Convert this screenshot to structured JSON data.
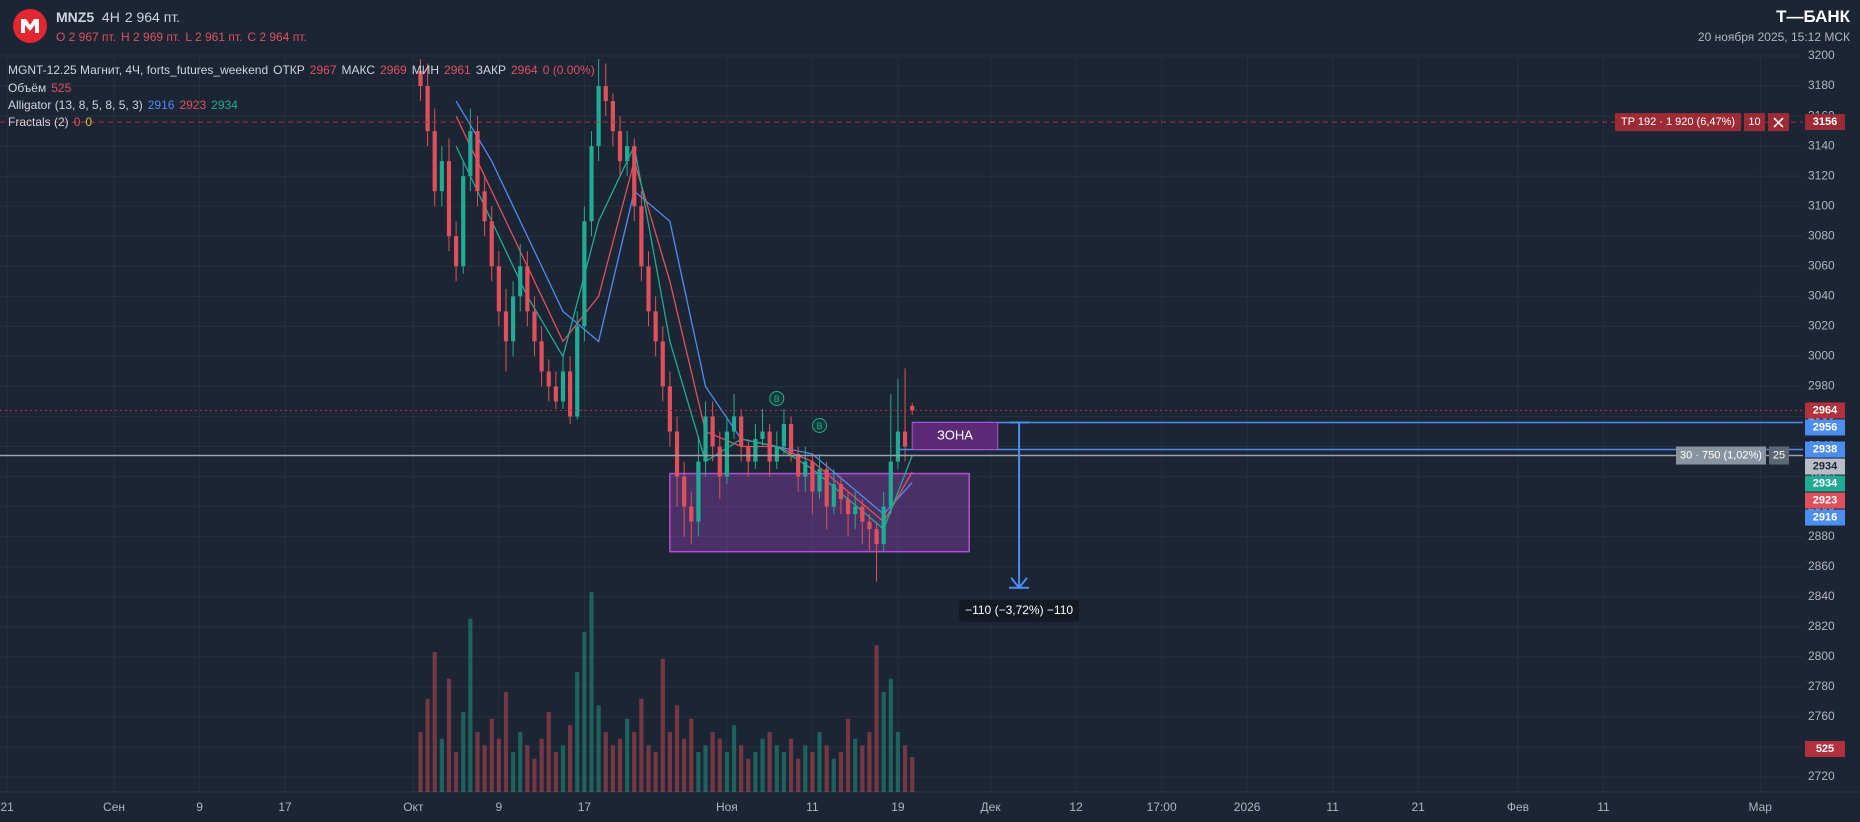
{
  "header": {
    "symbol": "MNZ5",
    "interval": "4H",
    "price": "2 964 пт.",
    "ohlc": [
      "O 2 967 пт.",
      "H 2 969 пт.",
      "L 2 961 пт.",
      "C 2 964 пт."
    ],
    "brand": "Т—БАНК",
    "datetime": "20 ноября 2025, 15:12 МСК"
  },
  "legend": {
    "instrument": "MGNT-12.25 Магнит, 4Ч, forts_futures_weekend",
    "open": "ОТКР",
    "high": "МАКС",
    "low": "МИН",
    "close": "ЗАКР",
    "change": "0 (0.00%)",
    "volume": "Объём",
    "alligator": "Alligator (13, 8, 5, 8, 5, 3)",
    "fractals": "Fractals (2)",
    "fractal_values": [
      "0",
      "0"
    ]
  },
  "chart_data": {
    "type": "candlestick",
    "up_color": "#22ab94",
    "down_color": "#e0505c",
    "open": [
      3190,
      3180,
      3150,
      3110,
      3130,
      3080,
      3060,
      3120,
      3150,
      3110,
      3090,
      3060,
      3030,
      3010,
      3040,
      3060,
      3030,
      3010,
      2990,
      2980,
      2970,
      2990,
      2960,
      3020,
      3090,
      3140,
      3180,
      3170,
      3150,
      3130,
      3140,
      3100,
      3060,
      3030,
      3010,
      2980,
      2950,
      2920,
      2900,
      2890,
      2930,
      2960,
      2940,
      2920,
      2950,
      2960,
      2940,
      2930,
      2945,
      2950,
      2930,
      2940,
      2955,
      2935,
      2920,
      2930,
      2910,
      2925,
      2900,
      2915,
      2905,
      2895,
      2900,
      2890,
      2885,
      2875,
      2900,
      2930,
      2950,
      2967
    ],
    "high": [
      3198,
      3195,
      3165,
      3140,
      3145,
      3090,
      3130,
      3165,
      3160,
      3120,
      3100,
      3070,
      3045,
      3050,
      3075,
      3070,
      3040,
      3020,
      2998,
      2990,
      3000,
      3000,
      3030,
      3100,
      3150,
      3198,
      3195,
      3175,
      3160,
      3150,
      3145,
      3110,
      3070,
      3040,
      3020,
      2990,
      2960,
      2930,
      2910,
      2945,
      2970,
      2970,
      2950,
      2960,
      2975,
      2965,
      2945,
      2955,
      2965,
      2955,
      2950,
      2965,
      2960,
      2940,
      2940,
      2935,
      2935,
      2930,
      2925,
      2920,
      2910,
      2910,
      2905,
      2895,
      2890,
      2910,
      2975,
      2985,
      2992,
      2969
    ],
    "low": [
      3170,
      3140,
      3100,
      3100,
      3070,
      3050,
      3055,
      3110,
      3100,
      3080,
      3050,
      3020,
      2990,
      3000,
      3030,
      3020,
      3000,
      2980,
      2970,
      2965,
      2965,
      2955,
      2958,
      3010,
      3080,
      3130,
      3160,
      3140,
      3120,
      3120,
      3090,
      3050,
      3020,
      3000,
      2970,
      2940,
      2900,
      2880,
      2875,
      2880,
      2920,
      2930,
      2905,
      2915,
      2945,
      2930,
      2920,
      2925,
      2940,
      2920,
      2925,
      2935,
      2930,
      2910,
      2910,
      2895,
      2905,
      2885,
      2895,
      2895,
      2880,
      2885,
      2875,
      2870,
      2850,
      2870,
      2895,
      2925,
      2930,
      2961
    ],
    "close": [
      3180,
      3150,
      3110,
      3130,
      3080,
      3060,
      3120,
      3150,
      3110,
      3090,
      3060,
      3030,
      3010,
      3040,
      3060,
      3030,
      3010,
      2990,
      2980,
      2970,
      2990,
      2960,
      3020,
      3090,
      3140,
      3180,
      3170,
      3150,
      3130,
      3140,
      3100,
      3060,
      3030,
      3010,
      2980,
      2950,
      2920,
      2900,
      2890,
      2930,
      2960,
      2940,
      2920,
      2950,
      2960,
      2940,
      2930,
      2945,
      2950,
      2930,
      2940,
      2955,
      2935,
      2920,
      2930,
      2910,
      2925,
      2900,
      2915,
      2905,
      2895,
      2900,
      2890,
      2885,
      2875,
      2900,
      2930,
      2950,
      2940,
      2964
    ],
    "volume": [
      900,
      1400,
      2100,
      800,
      1700,
      600,
      1200,
      2600,
      900,
      700,
      1100,
      800,
      1500,
      600,
      900,
      700,
      500,
      800,
      1200,
      600,
      700,
      1000,
      1800,
      2400,
      3000,
      1300,
      900,
      700,
      800,
      1100,
      900,
      1400,
      700,
      600,
      2000,
      900,
      1300,
      800,
      1100,
      600,
      700,
      900,
      800,
      600,
      1000,
      700,
      500,
      600,
      800,
      900,
      700,
      600,
      800,
      500,
      700,
      600,
      900,
      700,
      500,
      600,
      1100,
      800,
      700,
      900,
      2200,
      1500,
      1700,
      900,
      700,
      525
    ],
    "xlim": [
      -59,
      194
    ],
    "xticks": [
      {
        "value": -58,
        "label": "21"
      },
      {
        "value": -43,
        "label": "Сен"
      },
      {
        "value": -31,
        "label": "9"
      },
      {
        "value": -19,
        "label": "17"
      },
      {
        "value": -1,
        "label": "Окт"
      },
      {
        "value": 11,
        "label": "9"
      },
      {
        "value": 23,
        "label": "17"
      },
      {
        "value": 43,
        "label": "Ноя"
      },
      {
        "value": 55,
        "label": "11"
      },
      {
        "value": 67,
        "label": "19"
      },
      {
        "value": 80,
        "label": "Дек"
      },
      {
        "value": 92,
        "label": "12"
      },
      {
        "value": 104,
        "label": "17:00"
      },
      {
        "value": 116,
        "label": "2026"
      },
      {
        "value": 128,
        "label": "11"
      },
      {
        "value": 140,
        "label": "21"
      },
      {
        "value": 154,
        "label": "Фев"
      },
      {
        "value": 166,
        "label": "11"
      },
      {
        "value": 188,
        "label": "Мар"
      }
    ],
    "ylim": [
      2710,
      3200
    ],
    "yticks": [
      2720,
      2740,
      2760,
      2780,
      2800,
      2820,
      2840,
      2860,
      2880,
      2900,
      2920,
      2940,
      2960,
      2980,
      3000,
      3020,
      3040,
      3060,
      3080,
      3100,
      3120,
      3140,
      3160,
      3180,
      3200
    ],
    "grid": true,
    "series": [
      {
        "color": "#4c8df0",
        "x": [
          5,
          10,
          15,
          20,
          25,
          30,
          35,
          40,
          45,
          50,
          55,
          60,
          65,
          69
        ],
        "values": [
          3170,
          3130,
          3080,
          3030,
          3010,
          3110,
          3090,
          2980,
          2945,
          2940,
          2935,
          2915,
          2895,
          2916
        ]
      },
      {
        "color": "#e0505c",
        "x": [
          5,
          10,
          15,
          20,
          25,
          30,
          35,
          40,
          45,
          50,
          55,
          60,
          65,
          69
        ],
        "values": [
          3160,
          3110,
          3060,
          3010,
          3040,
          3130,
          3050,
          2950,
          2940,
          2940,
          2930,
          2910,
          2890,
          2923
        ]
      },
      {
        "color": "#22ab94",
        "x": [
          5,
          10,
          15,
          20,
          25,
          30,
          35,
          40,
          45,
          50,
          55,
          60,
          65,
          69
        ],
        "values": [
          3140,
          3090,
          3040,
          3000,
          3090,
          3140,
          3010,
          2930,
          2945,
          2940,
          2925,
          2905,
          2885,
          2934
        ]
      }
    ],
    "price_lines": [
      {
        "value": 3156,
        "color": "#b2313c",
        "style": "dashed",
        "x0": -59
      },
      {
        "value": 2956,
        "color": "#4c8df0",
        "style": "solid",
        "x0": 69
      },
      {
        "value": 2938,
        "color": "#4c8df0",
        "style": "solid",
        "x0": 67
      },
      {
        "value": 2934,
        "color": "#9aa3ad",
        "style": "solid",
        "x0": -59
      }
    ],
    "zone_rect": {
      "x": [
        35,
        77
      ],
      "values": [
        2870,
        2922
      ],
      "color": "#b44fd6"
    },
    "zone_label": {
      "label": "ЗОНА",
      "x": [
        69,
        81
      ],
      "values": [
        2938,
        2956
      ]
    },
    "measure": {
      "x": 84,
      "values": [
        2956,
        2846
      ],
      "label": "−110 (−3,72%) −110"
    },
    "fractals": {
      "label": "B",
      "x": [
        50,
        56
      ],
      "values": [
        2972,
        2954
      ]
    },
    "position": {
      "tp_label": "TP 192 · 1 920 (6,47%)",
      "tp_qty": "10",
      "entry_label": "30 · 750 (1,02%)",
      "entry_qty": "25"
    }
  }
}
